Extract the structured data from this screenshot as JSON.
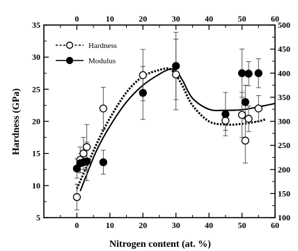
{
  "chart_data": {
    "type": "scatter",
    "xlabel": "Nitrogen content (at. %)",
    "ylabel": "Hardness (GPa)",
    "y2label": "",
    "xlim": [
      -10,
      60
    ],
    "ylim": [
      5,
      35
    ],
    "y2lim": [
      100,
      500
    ],
    "x_ticks": [
      0,
      10,
      20,
      30,
      40,
      50,
      60
    ],
    "y_ticks": [
      5,
      10,
      15,
      20,
      25,
      30,
      35
    ],
    "y2_ticks": [
      100,
      150,
      200,
      250,
      300,
      350,
      400,
      450,
      500
    ],
    "legend_position": "top-left",
    "series": [
      {
        "name": "Hardness",
        "axis": "left",
        "marker": "open-circle",
        "line_style": "dotted",
        "x": [
          0,
          1,
          2,
          3,
          8,
          20,
          30,
          45,
          50,
          51,
          52,
          55
        ],
        "y": [
          8.2,
          14.0,
          15.0,
          16.0,
          22.0,
          27.2,
          27.3,
          20.1,
          21.0,
          17.0,
          20.4,
          22.0
        ],
        "error": [
          2.0,
          2.0,
          2.5,
          3.5,
          3.3,
          4.0,
          5.5,
          1.5,
          3.5,
          3.5,
          2.0,
          2.0
        ],
        "fit_x": [
          0,
          3,
          6,
          10,
          15,
          20,
          25,
          28,
          30,
          32,
          35,
          40,
          45,
          50,
          55,
          57
        ],
        "fit_y": [
          9.5,
          13.0,
          16.5,
          20.5,
          24.5,
          27.0,
          28.0,
          28.2,
          27.2,
          25.5,
          22.5,
          20.0,
          19.5,
          19.6,
          20.0,
          20.3
        ]
      },
      {
        "name": "Modulus",
        "axis": "right",
        "marker": "filled-circle",
        "line_style": "solid",
        "x": [
          0,
          1,
          2,
          3,
          8,
          20,
          30,
          45,
          50,
          51,
          52,
          55
        ],
        "y": [
          202,
          213,
          215,
          217,
          215,
          359,
          415,
          315,
          400,
          340,
          399,
          400
        ],
        "error": [
          20,
          20,
          15,
          40,
          25,
          55,
          70,
          45,
          50,
          35,
          25,
          30
        ],
        "fit_x": [
          1,
          3,
          6,
          10,
          15,
          20,
          25,
          28,
          30,
          32,
          35,
          40,
          45,
          50,
          55,
          60
        ],
        "fit_y": [
          155,
          190,
          240,
          290,
          340,
          375,
          398,
          408,
          405,
          385,
          348,
          325,
          323,
          324,
          330,
          337
        ]
      }
    ]
  }
}
